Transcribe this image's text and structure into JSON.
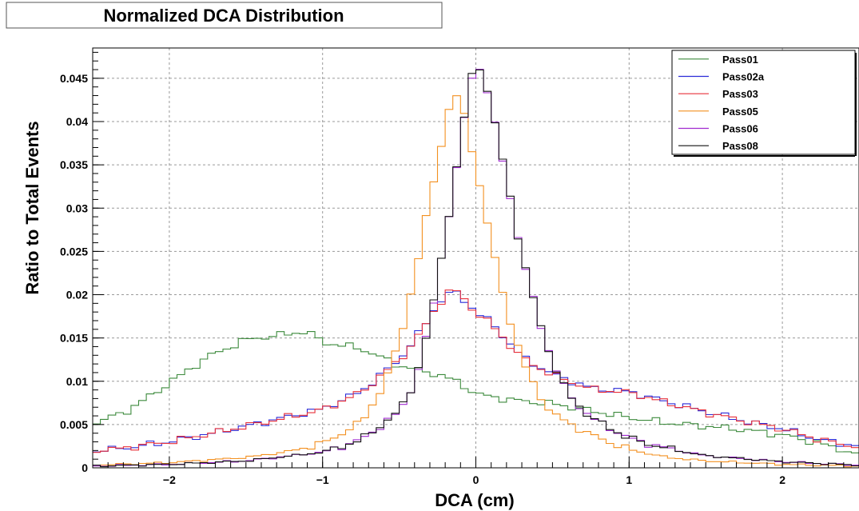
{
  "chart_data": {
    "type": "line",
    "title": "Normalized DCA Distribution",
    "xlabel": "DCA (cm)",
    "ylabel": "Ratio to Total Events",
    "xlim": [
      -2.5,
      2.5
    ],
    "ylim": [
      0,
      0.0485
    ],
    "xticks": [
      {
        "value": -2,
        "label": "−2"
      },
      {
        "value": -1,
        "label": "−1"
      },
      {
        "value": 0,
        "label": "0"
      },
      {
        "value": 1,
        "label": "1"
      },
      {
        "value": 2,
        "label": "2"
      }
    ],
    "yticks": [
      {
        "value": 0,
        "label": "0"
      },
      {
        "value": 0.005,
        "label": "0.005"
      },
      {
        "value": 0.01,
        "label": "0.01"
      },
      {
        "value": 0.015,
        "label": "0.015"
      },
      {
        "value": 0.02,
        "label": "0.02"
      },
      {
        "value": 0.025,
        "label": "0.025"
      },
      {
        "value": 0.03,
        "label": "0.03"
      },
      {
        "value": 0.035,
        "label": "0.035"
      },
      {
        "value": 0.04,
        "label": "0.04"
      },
      {
        "value": 0.045,
        "label": "0.045"
      }
    ],
    "grid": true,
    "legend_position": "top-right",
    "bin_width": 0.05,
    "series": [
      {
        "name": "Pass01",
        "color": "#3c8a3c",
        "x": [
          -2.5,
          -2.25,
          -2.0,
          -1.75,
          -1.5,
          -1.25,
          -1.1,
          -1.0,
          -0.75,
          -0.5,
          -0.25,
          -0.1,
          0.0,
          0.25,
          0.5,
          0.75,
          1.0,
          1.25,
          1.5,
          1.75,
          2.0,
          2.25,
          2.5
        ],
        "y": [
          0.005,
          0.0068,
          0.0098,
          0.0128,
          0.0148,
          0.0154,
          0.0158,
          0.0145,
          0.0138,
          0.0118,
          0.0108,
          0.0098,
          0.0085,
          0.0078,
          0.0074,
          0.0066,
          0.0058,
          0.0052,
          0.0048,
          0.0044,
          0.0038,
          0.0028,
          0.0015
        ]
      },
      {
        "name": "Pass02a",
        "color": "#2a2ad8",
        "x": [
          -2.5,
          -2.0,
          -1.5,
          -1.0,
          -0.75,
          -0.5,
          -0.35,
          -0.25,
          -0.15,
          -0.05,
          0.0,
          0.1,
          0.2,
          0.3,
          0.4,
          0.5,
          0.75,
          1.0,
          1.25,
          1.5,
          1.75,
          2.0,
          2.25,
          2.5
        ],
        "y": [
          0.0018,
          0.003,
          0.0048,
          0.0068,
          0.0088,
          0.0125,
          0.016,
          0.019,
          0.0205,
          0.019,
          0.018,
          0.0168,
          0.0148,
          0.0128,
          0.0118,
          0.0108,
          0.0092,
          0.0088,
          0.0076,
          0.0065,
          0.0054,
          0.0045,
          0.0032,
          0.0025
        ]
      },
      {
        "name": "Pass03",
        "color": "#e8303a",
        "x": [
          -2.5,
          -2.0,
          -1.5,
          -1.0,
          -0.75,
          -0.5,
          -0.35,
          -0.25,
          -0.15,
          -0.05,
          0.0,
          0.1,
          0.2,
          0.3,
          0.4,
          0.5,
          0.75,
          1.0,
          1.25,
          1.5,
          1.75,
          2.0,
          2.25,
          2.5
        ],
        "y": [
          0.0018,
          0.003,
          0.0048,
          0.0067,
          0.0087,
          0.0124,
          0.0158,
          0.0188,
          0.0208,
          0.019,
          0.0179,
          0.0166,
          0.0146,
          0.0127,
          0.0117,
          0.0107,
          0.0091,
          0.0087,
          0.0075,
          0.0064,
          0.0054,
          0.0045,
          0.0032,
          0.0024
        ]
      },
      {
        "name": "Pass05",
        "color": "#f39020",
        "x": [
          -2.5,
          -2.0,
          -1.5,
          -1.25,
          -1.0,
          -0.75,
          -0.6,
          -0.5,
          -0.4,
          -0.3,
          -0.2,
          -0.15,
          -0.1,
          0.0,
          0.05,
          0.15,
          0.2,
          0.3,
          0.4,
          0.5,
          0.75,
          1.0,
          1.25,
          1.5,
          2.0,
          2.5
        ],
        "y": [
          0.0003,
          0.0006,
          0.0012,
          0.0018,
          0.0028,
          0.0052,
          0.0095,
          0.0145,
          0.022,
          0.031,
          0.0395,
          0.0433,
          0.0425,
          0.035,
          0.0303,
          0.022,
          0.0185,
          0.0125,
          0.0088,
          0.0062,
          0.0038,
          0.0021,
          0.0012,
          0.0008,
          0.0004,
          0.0002
        ]
      },
      {
        "name": "Pass06",
        "color": "#a02ad0",
        "x": [
          -2.5,
          -2.0,
          -1.5,
          -1.0,
          -0.75,
          -0.5,
          -0.4,
          -0.3,
          -0.2,
          -0.1,
          -0.05,
          0.0,
          0.05,
          0.1,
          0.2,
          0.3,
          0.4,
          0.5,
          0.6,
          0.75,
          1.0,
          1.25,
          1.5,
          2.0,
          2.5
        ],
        "y": [
          0.0002,
          0.0004,
          0.0008,
          0.0018,
          0.0032,
          0.0064,
          0.0098,
          0.0165,
          0.0268,
          0.037,
          0.0435,
          0.0468,
          0.0455,
          0.0415,
          0.0335,
          0.0245,
          0.0178,
          0.0122,
          0.0085,
          0.0058,
          0.0034,
          0.0022,
          0.0014,
          0.0007,
          0.0003
        ]
      },
      {
        "name": "Pass08",
        "color": "#111111",
        "x": [
          -2.5,
          -2.0,
          -1.5,
          -1.0,
          -0.75,
          -0.5,
          -0.4,
          -0.3,
          -0.2,
          -0.1,
          -0.05,
          0.0,
          0.05,
          0.1,
          0.2,
          0.3,
          0.4,
          0.5,
          0.6,
          0.75,
          1.0,
          1.25,
          1.5,
          2.0,
          2.5
        ],
        "y": [
          0.0002,
          0.0004,
          0.0008,
          0.0018,
          0.0032,
          0.0065,
          0.0099,
          0.0166,
          0.0268,
          0.0372,
          0.0437,
          0.047,
          0.0456,
          0.0416,
          0.0336,
          0.0246,
          0.0178,
          0.0122,
          0.0085,
          0.0058,
          0.0034,
          0.0022,
          0.0014,
          0.0007,
          0.0003
        ]
      }
    ]
  }
}
